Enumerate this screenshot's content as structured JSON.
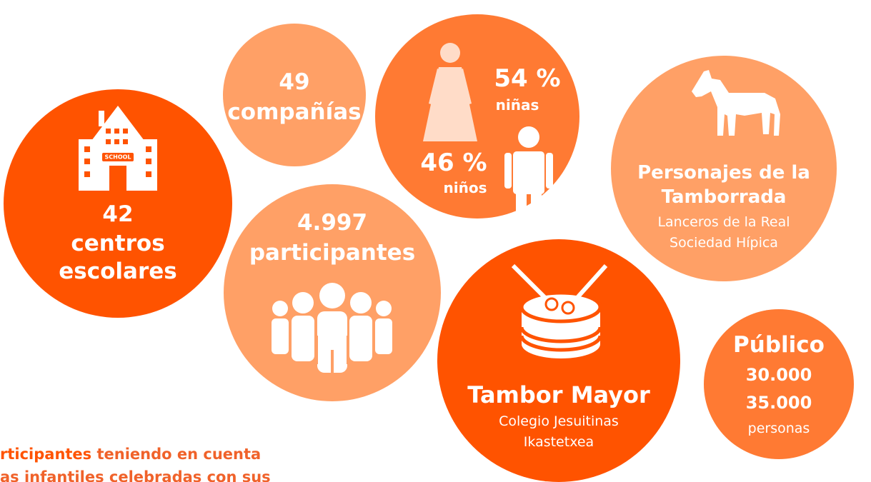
{
  "bubbles": {
    "schools": {
      "number": "42",
      "lines": [
        "centros",
        "escolares"
      ],
      "icon_text": "SCHOOL"
    },
    "companies": {
      "number": "49",
      "label": "compañías"
    },
    "gender": {
      "girls_value": "54 %",
      "girls_label": "niñas",
      "boys_value": "46 %",
      "boys_label": "niños"
    },
    "characters": {
      "title": [
        "Personajes de la",
        "Tamborrada"
      ],
      "subtitle": [
        "Lanceros de la Real",
        "Sociedad Hípica"
      ]
    },
    "participants": {
      "number": "4.997",
      "label": "participantes"
    },
    "drum_major": {
      "title": "Tambor Mayor",
      "subtitle": [
        "Colegio Jesuitinas",
        "Ikastetxea"
      ]
    },
    "public": {
      "title": "Público",
      "values": [
        "30.000",
        "35.000"
      ],
      "unit": "personas"
    }
  },
  "footer": {
    "bold": "rticipantes",
    "rest": " teniendo en cuenta",
    "line2": "as infantiles celebradas con sus"
  }
}
